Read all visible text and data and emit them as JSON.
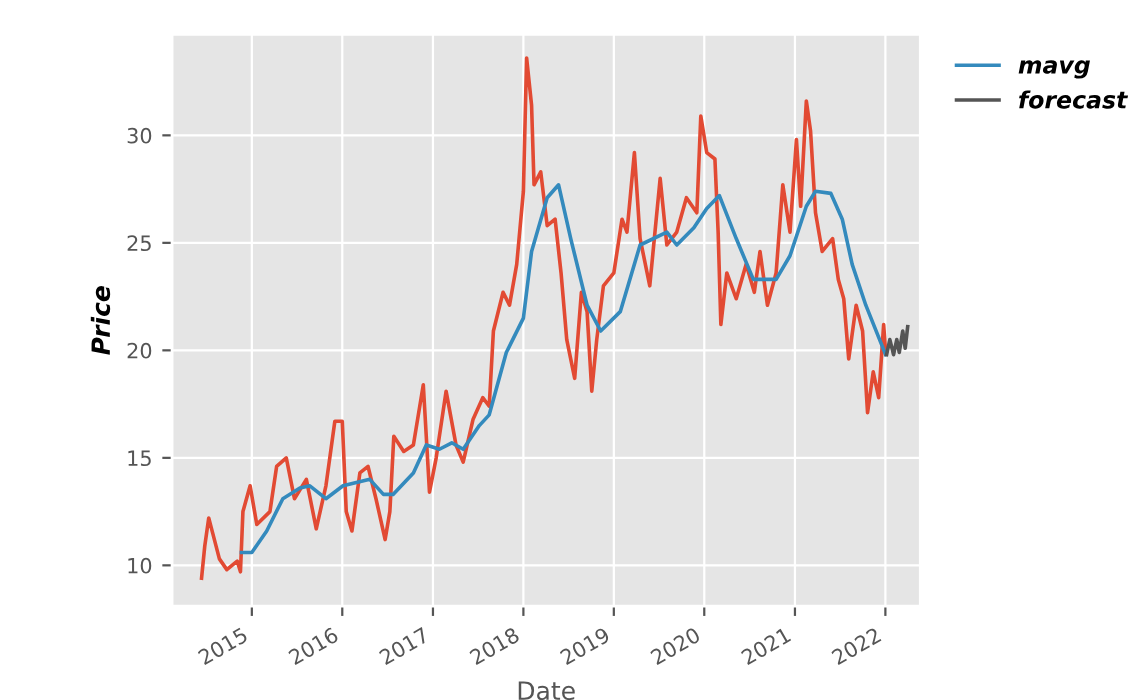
{
  "chart_data": {
    "type": "line",
    "xlabel": "Date",
    "ylabel": "Price",
    "xlim": [
      "2014-02-13",
      "2022-05-22"
    ],
    "ylim": [
      8.1,
      34.7
    ],
    "xticks": [
      "2015",
      "2016",
      "2017",
      "2018",
      "2019",
      "2020",
      "2021",
      "2022"
    ],
    "yticks": [
      10,
      15,
      20,
      25,
      30
    ],
    "grid": true,
    "legend": "top right",
    "series": [
      {
        "color": "#e24a33",
        "x": [
          "2014-06-12",
          "2014-06-25",
          "2014-07-11",
          "2014-07-27",
          "2014-08-23",
          "2014-09-22",
          "2014-11-03",
          "2014-11-16",
          "2014-11-26",
          "2014-12-25",
          "2015-01-21",
          "2015-03-15",
          "2015-04-11",
          "2015-05-20",
          "2015-06-22",
          "2015-08-09",
          "2015-09-18",
          "2015-10-27",
          "2015-12-02",
          "2016-01-01",
          "2016-01-17",
          "2016-02-09",
          "2016-03-12",
          "2016-04-14",
          "2016-05-16",
          "2016-06-22",
          "2016-07-11",
          "2016-07-27",
          "2016-09-05",
          "2016-10-14",
          "2016-11-23",
          "2016-12-18",
          "2017-01-14",
          "2017-02-23",
          "2017-04-04",
          "2017-05-03",
          "2017-06-12",
          "2017-07-21",
          "2017-08-16",
          "2017-09-02",
          "2017-10-11",
          "2017-11-06",
          "2017-12-05",
          "2018-01-01",
          "2018-01-14",
          "2018-02-03",
          "2018-02-13",
          "2018-03-12",
          "2018-04-07",
          "2018-05-09",
          "2018-06-02",
          "2018-06-25",
          "2018-07-27",
          "2018-08-23",
          "2018-09-15",
          "2018-10-04",
          "2018-10-24",
          "2018-11-20",
          "2019-01-01",
          "2019-02-03",
          "2019-02-23",
          "2019-03-25",
          "2019-04-17",
          "2019-05-26",
          "2019-07-07",
          "2019-08-03",
          "2019-09-12",
          "2019-10-21",
          "2019-12-02",
          "2019-12-18",
          "2020-01-11",
          "2020-02-13",
          "2020-02-26",
          "2020-03-08",
          "2020-04-01",
          "2020-05-09",
          "2020-06-18",
          "2020-07-21",
          "2020-08-13",
          "2020-09-12",
          "2020-10-17",
          "2020-11-13",
          "2020-12-12",
          "2021-01-07",
          "2021-01-24",
          "2021-02-16",
          "2021-03-05",
          "2021-03-25",
          "2021-04-21",
          "2021-06-02",
          "2021-06-25",
          "2021-07-17",
          "2021-08-06",
          "2021-09-05",
          "2021-10-01",
          "2021-10-21",
          "2021-11-13",
          "2021-12-05",
          "2021-12-25",
          "2022-01-02"
        ],
        "values": [
          9.4,
          10.9,
          12.2,
          11.5,
          10.3,
          9.8,
          10.2,
          9.7,
          12.5,
          13.7,
          11.9,
          12.5,
          14.6,
          15.0,
          13.1,
          14.0,
          11.7,
          13.7,
          16.7,
          16.7,
          12.5,
          11.6,
          14.3,
          14.6,
          13.1,
          11.2,
          12.5,
          16.0,
          15.3,
          15.6,
          18.4,
          13.4,
          15.0,
          18.1,
          15.6,
          14.8,
          16.8,
          17.8,
          17.4,
          20.9,
          22.7,
          22.1,
          24.0,
          27.4,
          33.6,
          31.4,
          27.7,
          28.3,
          25.8,
          26.1,
          23.6,
          20.5,
          18.7,
          22.7,
          21.8,
          18.1,
          20.5,
          23.0,
          23.6,
          26.1,
          25.5,
          29.2,
          25.2,
          23.0,
          28.0,
          24.9,
          25.5,
          27.1,
          26.4,
          30.9,
          29.2,
          28.9,
          25.5,
          21.2,
          23.6,
          22.4,
          24.0,
          22.7,
          24.6,
          22.1,
          23.6,
          27.7,
          25.5,
          29.8,
          26.7,
          31.6,
          30.2,
          26.4,
          24.6,
          25.2,
          23.3,
          22.4,
          19.6,
          22.1,
          20.9,
          17.1,
          19.0,
          17.8,
          21.2,
          19.9
        ]
      },
      {
        "name": "mavg",
        "color": "#348abd",
        "x": [
          "2014-11-20",
          "2015-01-01",
          "2015-03-02",
          "2015-05-06",
          "2015-07-14",
          "2015-08-23",
          "2015-10-27",
          "2016-01-04",
          "2016-04-21",
          "2016-06-15",
          "2016-07-24",
          "2016-10-14",
          "2016-12-05",
          "2017-01-27",
          "2017-03-18",
          "2017-05-03",
          "2017-07-07",
          "2017-08-16",
          "2017-10-24",
          "2018-01-01",
          "2018-02-03",
          "2018-04-07",
          "2018-05-23",
          "2018-07-11",
          "2018-09-15",
          "2018-11-09",
          "2019-01-27",
          "2019-04-17",
          "2019-08-03",
          "2019-09-12",
          "2019-11-20",
          "2020-01-11",
          "2020-03-02",
          "2020-05-09",
          "2020-07-17",
          "2020-10-17",
          "2020-12-12",
          "2021-02-16",
          "2021-03-25",
          "2021-05-26",
          "2021-07-11",
          "2021-08-20",
          "2021-10-14",
          "2022-01-02"
        ],
        "values": [
          10.6,
          10.6,
          11.6,
          13.1,
          13.6,
          13.7,
          13.1,
          13.7,
          14.0,
          13.3,
          13.3,
          14.3,
          15.6,
          15.4,
          15.7,
          15.4,
          16.5,
          17.0,
          19.9,
          21.5,
          24.6,
          27.1,
          27.7,
          25.2,
          22.1,
          20.9,
          21.8,
          24.9,
          25.5,
          24.9,
          25.7,
          26.6,
          27.2,
          25.2,
          23.3,
          23.3,
          24.4,
          26.7,
          27.4,
          27.3,
          26.1,
          24.0,
          22.1,
          19.8
        ]
      },
      {
        "name": "forecast",
        "color": "#555555",
        "x": [
          "2022-01-06",
          "2022-01-19",
          "2022-02-03",
          "2022-02-16",
          "2022-02-26",
          "2022-03-12",
          "2022-03-22",
          "2022-04-01"
        ],
        "values": [
          19.8,
          20.5,
          19.8,
          20.5,
          19.9,
          20.9,
          20.1,
          21.1
        ]
      }
    ]
  }
}
